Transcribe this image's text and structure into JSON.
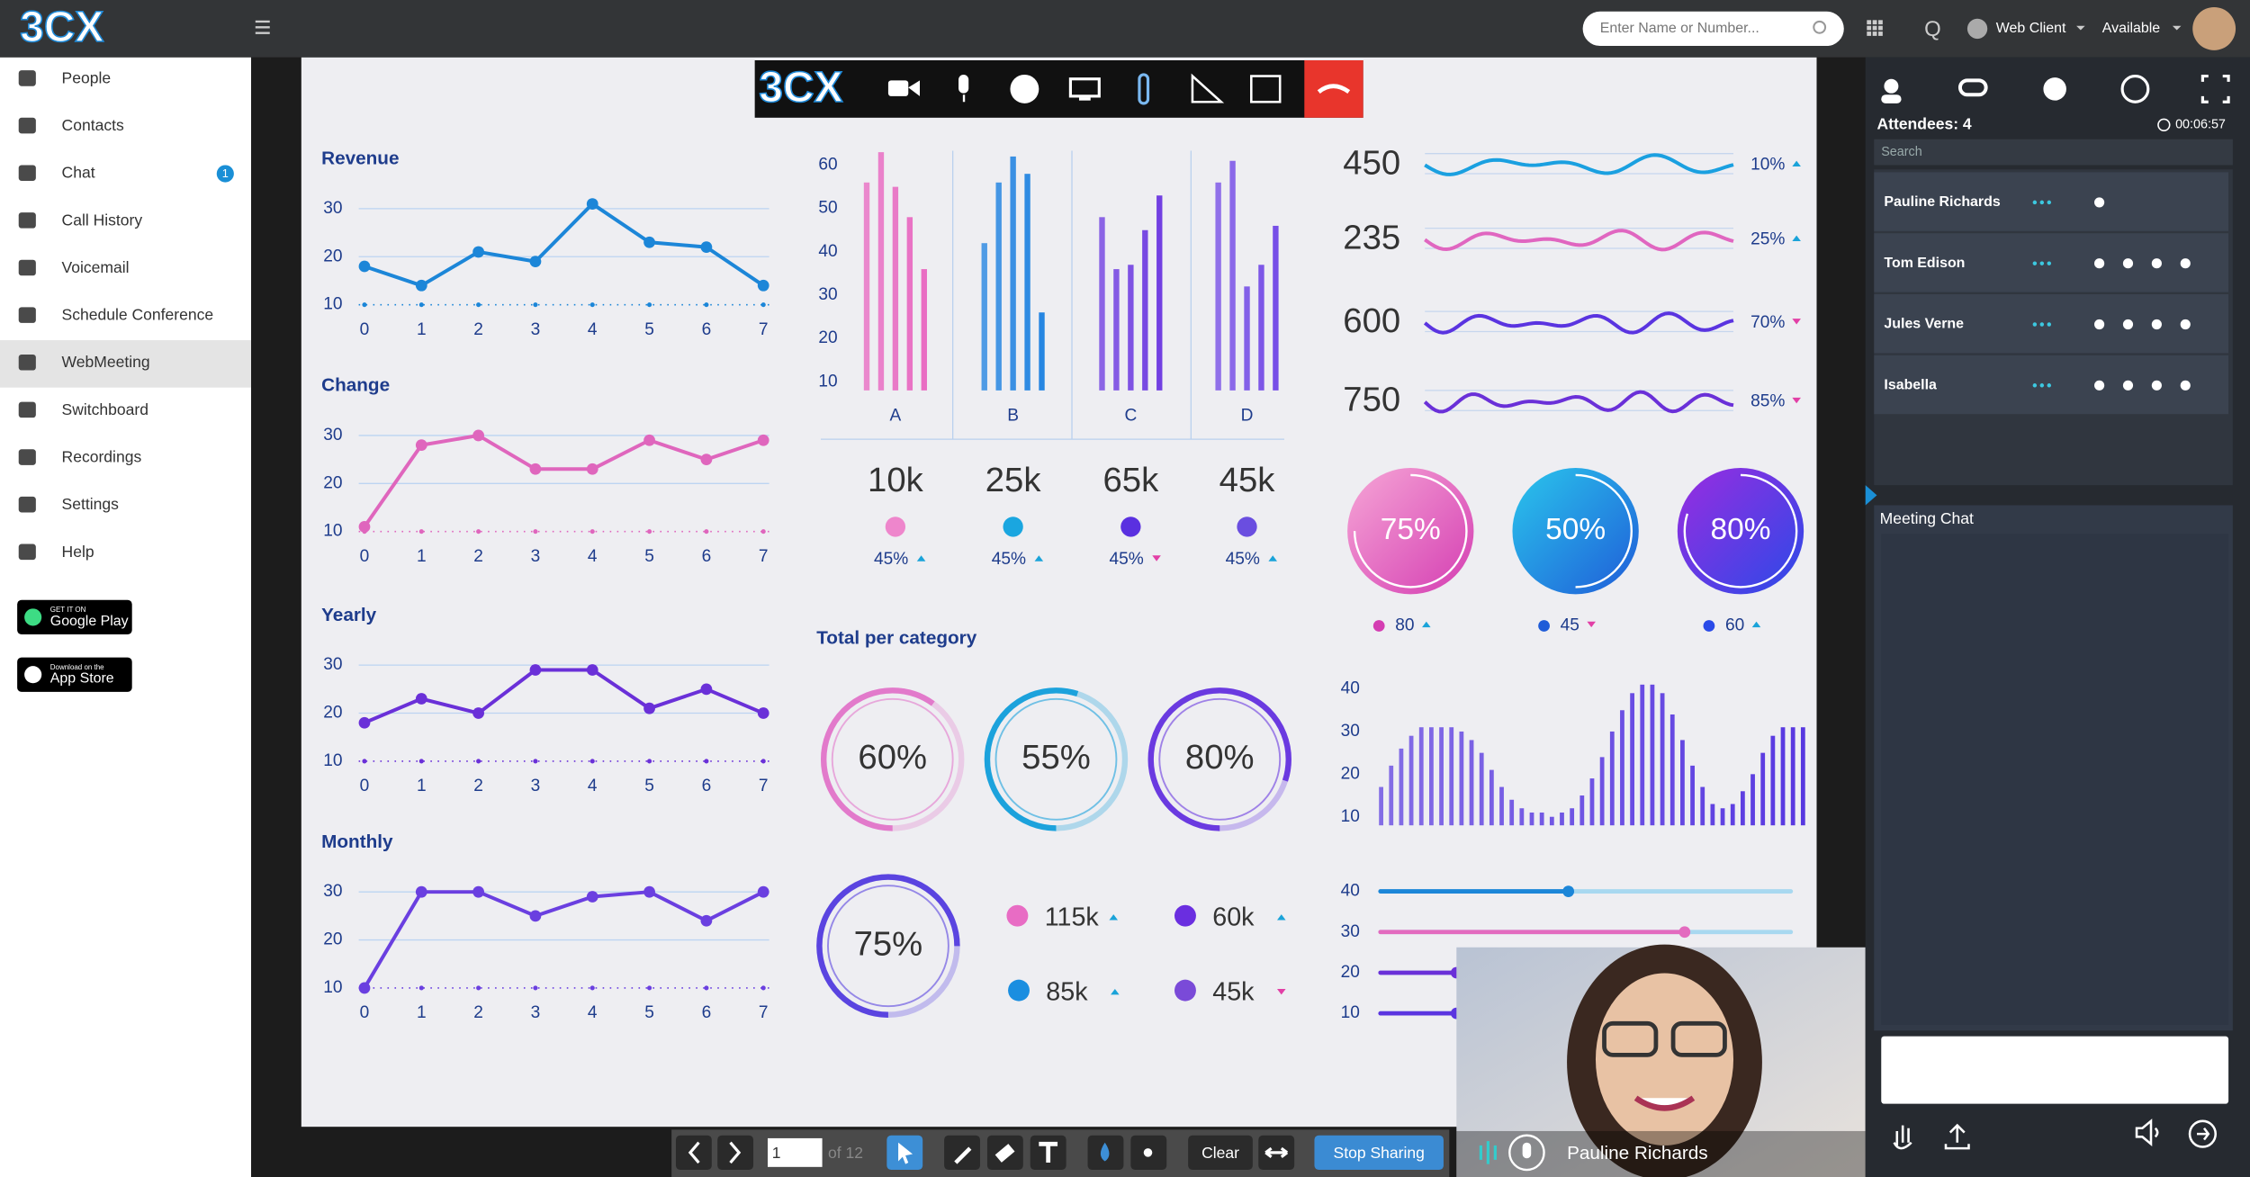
{
  "topbar": {
    "logo": "3CX",
    "search_placeholder": "Enter Name or Number...",
    "q": "Q",
    "web_client": "Web Client",
    "status": "Available"
  },
  "sidebar": {
    "items": [
      {
        "label": "People"
      },
      {
        "label": "Contacts"
      },
      {
        "label": "Chat",
        "badge": "1"
      },
      {
        "label": "Call History"
      },
      {
        "label": "Voicemail"
      },
      {
        "label": "Schedule Conference"
      },
      {
        "label": "WebMeeting",
        "selected": true
      },
      {
        "label": "Switchboard"
      },
      {
        "label": "Recordings"
      },
      {
        "label": "Settings"
      },
      {
        "label": "Help"
      }
    ],
    "stores": [
      {
        "small": "GET IT ON",
        "name": "Google Play"
      },
      {
        "small": "Download on the",
        "name": "App Store"
      }
    ]
  },
  "meeting_toolbar": {
    "logo": "3CX"
  },
  "dashboard": {
    "line_charts": [
      {
        "title": "Revenue",
        "x": [
          0,
          1,
          2,
          3,
          4,
          5,
          6,
          7
        ],
        "values": [
          18,
          14,
          21,
          19,
          31,
          23,
          22,
          14
        ],
        "xlim": [
          0,
          7
        ],
        "ylim": [
          8,
          34
        ],
        "yticks": [
          10,
          20,
          30
        ],
        "color": "#1c86d8"
      },
      {
        "title": "Change",
        "x": [
          0,
          1,
          2,
          3,
          4,
          5,
          6,
          7
        ],
        "values": [
          11,
          28,
          30,
          23,
          23,
          29,
          25,
          29
        ],
        "xlim": [
          0,
          7
        ],
        "ylim": [
          8,
          34
        ],
        "yticks": [
          10,
          20,
          30
        ],
        "color": "#df66bd"
      },
      {
        "title": "Yearly",
        "x": [
          0,
          1,
          2,
          3,
          4,
          5,
          6,
          7
        ],
        "values": [
          18,
          23,
          20,
          29,
          29,
          21,
          25,
          20
        ],
        "xlim": [
          0,
          7
        ],
        "ylim": [
          8,
          34
        ],
        "yticks": [
          10,
          20,
          30
        ],
        "color": "#6a30d8"
      },
      {
        "title": "Monthly",
        "x": [
          0,
          1,
          2,
          3,
          4,
          5,
          6,
          7
        ],
        "values": [
          10,
          30,
          30,
          25,
          29,
          30,
          24,
          30
        ],
        "xlim": [
          0,
          7
        ],
        "ylim": [
          8,
          34
        ],
        "yticks": [
          10,
          20,
          30
        ],
        "color": "#6a3fe0"
      }
    ],
    "bar_chart": {
      "type": "bar",
      "ylim": [
        8,
        64
      ],
      "yticks": [
        10,
        20,
        30,
        40,
        50,
        60
      ],
      "groups": [
        {
          "label": "A",
          "values": [
            56,
            63,
            55,
            48,
            36
          ],
          "color": "#e865c0"
        },
        {
          "label": "B",
          "values": [
            42,
            56,
            62,
            58,
            26
          ],
          "color": "#1a7fe0"
        },
        {
          "label": "C",
          "values": [
            48,
            36,
            37,
            45,
            53
          ],
          "color": "#6a36e0"
        },
        {
          "label": "D",
          "values": [
            56,
            61,
            32,
            37,
            46
          ],
          "color": "#7046e6"
        }
      ]
    },
    "stats": [
      {
        "value": "10k",
        "percent": "45%",
        "trend": "up",
        "color": "#ee86cc"
      },
      {
        "value": "25k",
        "percent": "45%",
        "trend": "up",
        "color": "#1aa6e0"
      },
      {
        "value": "65k",
        "percent": "45%",
        "trend": "down",
        "color": "#5a30e0"
      },
      {
        "value": "45k",
        "percent": "45%",
        "trend": "up",
        "color": "#6a4ee0"
      }
    ],
    "waves": [
      {
        "label": "450",
        "percent": "10%",
        "trend": "up",
        "color": "#1aa0e0"
      },
      {
        "label": "235",
        "percent": "25%",
        "trend": "up",
        "color": "#e066c0"
      },
      {
        "label": "600",
        "percent": "70%",
        "trend": "down",
        "color": "#5a34e0"
      },
      {
        "label": "750",
        "percent": "85%",
        "trend": "down",
        "color": "#6a30d8"
      }
    ],
    "gauges": [
      {
        "value": 75,
        "label": "75%",
        "sub": "80",
        "trend": "up",
        "colors": [
          "#f6a6d6",
          "#d43db2"
        ]
      },
      {
        "value": 50,
        "label": "50%",
        "sub": "45",
        "trend": "down",
        "colors": [
          "#2ac6ec",
          "#1f5cd8"
        ]
      },
      {
        "value": 80,
        "label": "80%",
        "sub": "60",
        "trend": "up",
        "colors": [
          "#9a2ce0",
          "#2a4ae8"
        ]
      }
    ],
    "total": {
      "title": "Total per category",
      "rings": [
        {
          "value": 60,
          "label": "60%",
          "color": "#e27acb"
        },
        {
          "value": 55,
          "label": "55%",
          "color": "#1ca2dc"
        },
        {
          "value": 80,
          "label": "80%",
          "color": "#6a3ae0"
        },
        {
          "value": 75,
          "label": "75%",
          "color": "#5a44e0"
        }
      ],
      "legend": [
        {
          "label": "115k",
          "trend": "up",
          "color": "#e86cc4"
        },
        {
          "label": "60k",
          "trend": "up",
          "color": "#6a2ee0"
        },
        {
          "label": "85k",
          "trend": "up",
          "color": "#1a8ee0"
        },
        {
          "label": "45k",
          "trend": "down",
          "color": "#7a4ad8"
        }
      ]
    },
    "histogram": {
      "values": [
        17,
        22,
        26,
        29,
        31,
        31,
        31,
        31,
        30,
        28,
        25,
        21,
        17,
        14,
        12,
        11,
        11,
        10,
        11,
        12,
        15,
        19,
        24,
        30,
        35,
        39,
        41,
        41,
        39,
        34,
        28,
        22,
        17,
        13,
        12,
        13,
        16,
        20,
        25,
        29,
        31,
        31,
        31
      ],
      "ylim": [
        8,
        42
      ],
      "yticks": [
        10,
        20,
        30,
        40
      ],
      "color": "#5636e0"
    },
    "sliders": {
      "ylim": [
        10,
        40
      ],
      "yticks": [
        10,
        20,
        30,
        40
      ]
    }
  },
  "share_toolbar": {
    "page": "1",
    "of": "of 12",
    "clear": "Clear",
    "stop": "Stop Sharing"
  },
  "video": {
    "name": "Pauline Richards"
  },
  "panel": {
    "attendees": "Attendees: 4",
    "timer": "00:06:57",
    "search": "Search",
    "people": [
      {
        "name": "Pauline Richards"
      },
      {
        "name": "Tom Edison"
      },
      {
        "name": "Jules Verne"
      },
      {
        "name": "Isabella"
      }
    ],
    "chat_title": "Meeting Chat"
  }
}
